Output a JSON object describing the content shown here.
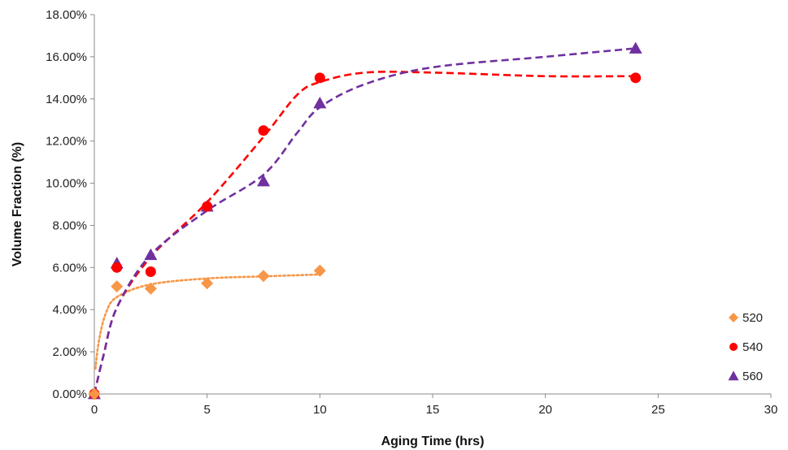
{
  "chart_data": {
    "type": "scatter",
    "title": "",
    "xlabel": "Aging Time (hrs)",
    "ylabel": "Volume Fraction (%)",
    "xlim": [
      0,
      30
    ],
    "ylim": [
      0,
      0.18
    ],
    "x_ticks": [
      0,
      5,
      10,
      15,
      20,
      25,
      30
    ],
    "x_tick_labels": [
      "0",
      "5",
      "10",
      "15",
      "20",
      "25",
      "30"
    ],
    "y_ticks": [
      0,
      0.02,
      0.04,
      0.06,
      0.08,
      0.1,
      0.12,
      0.14,
      0.16,
      0.18
    ],
    "y_tick_labels": [
      "0.00%",
      "2.00%",
      "4.00%",
      "6.00%",
      "8.00%",
      "10.00%",
      "12.00%",
      "14.00%",
      "16.00%",
      "18.00%"
    ],
    "grid": false,
    "legend_position": "bottom-right",
    "series": [
      {
        "name": "520",
        "marker": "diamond",
        "color": "#F79646",
        "trend_style": "dotted",
        "points": [
          [
            0,
            0.0
          ],
          [
            1,
            0.051
          ],
          [
            2.5,
            0.05
          ],
          [
            5,
            0.0525
          ],
          [
            7.5,
            0.056
          ],
          [
            10,
            0.0585
          ]
        ],
        "trend": [
          [
            0.05,
            0.012
          ],
          [
            0.2,
            0.025
          ],
          [
            0.5,
            0.038
          ],
          [
            1,
            0.046
          ],
          [
            2.5,
            0.052
          ],
          [
            5,
            0.0548
          ],
          [
            7.5,
            0.0558
          ],
          [
            10,
            0.0567
          ]
        ]
      },
      {
        "name": "540",
        "marker": "circle",
        "color": "#FF0000",
        "trend_style": "dashed",
        "points": [
          [
            0,
            0.0
          ],
          [
            1,
            0.06
          ],
          [
            2.5,
            0.058
          ],
          [
            5,
            0.089
          ],
          [
            7.5,
            0.125
          ],
          [
            10,
            0.15
          ],
          [
            24,
            0.15
          ]
        ],
        "trend": [
          [
            0,
            0.0
          ],
          [
            0.4,
            0.018
          ],
          [
            1,
            0.041
          ],
          [
            2.5,
            0.065
          ],
          [
            5,
            0.091
          ],
          [
            7.5,
            0.122
          ],
          [
            9,
            0.142
          ],
          [
            10,
            0.148
          ],
          [
            12,
            0.1525
          ],
          [
            15,
            0.1525
          ],
          [
            20,
            0.1508
          ],
          [
            24,
            0.1508
          ]
        ]
      },
      {
        "name": "560",
        "marker": "triangle",
        "color": "#7030A0",
        "trend_style": "dashed",
        "points": [
          [
            0,
            0.0
          ],
          [
            1,
            0.062
          ],
          [
            2.5,
            0.066
          ],
          [
            5,
            0.089
          ],
          [
            7.5,
            0.101
          ],
          [
            10,
            0.138
          ],
          [
            24,
            0.164
          ]
        ],
        "trend": [
          [
            0,
            0.0
          ],
          [
            0.4,
            0.018
          ],
          [
            1,
            0.041
          ],
          [
            2.5,
            0.066
          ],
          [
            5,
            0.087
          ],
          [
            7.5,
            0.104
          ],
          [
            9,
            0.124
          ],
          [
            10,
            0.136
          ],
          [
            12,
            0.147
          ],
          [
            15,
            0.155
          ],
          [
            20,
            0.16
          ],
          [
            24,
            0.164
          ]
        ]
      }
    ]
  }
}
